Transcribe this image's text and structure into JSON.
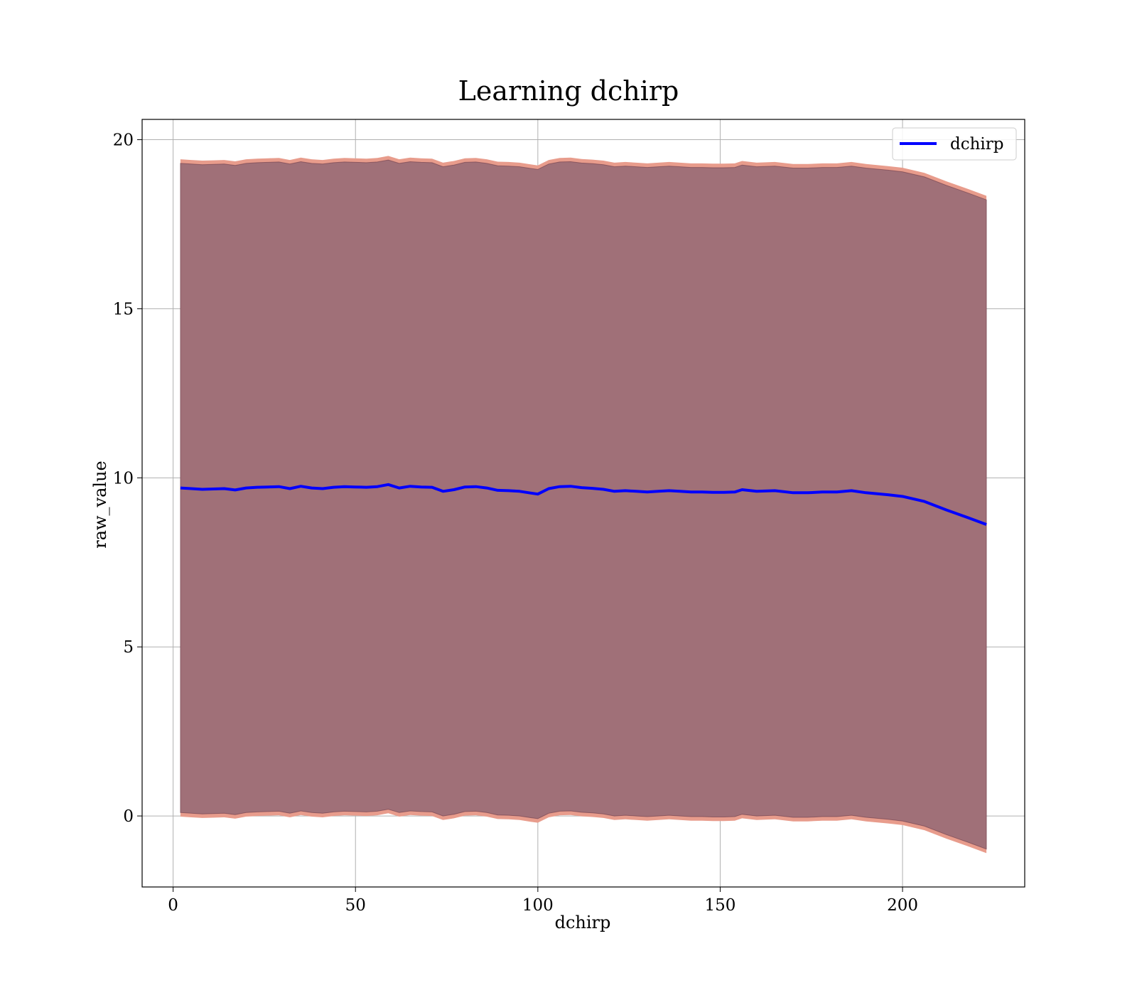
{
  "chart_data": {
    "type": "line",
    "title": "Learning dchirp",
    "xlabel": "dchirp",
    "ylabel": "raw_value",
    "xlim": [
      -8.5,
      233.5
    ],
    "ylim": [
      -2.1,
      20.6
    ],
    "xticks": [
      0,
      50,
      100,
      150,
      200
    ],
    "yticks": [
      0,
      5,
      10,
      15,
      20
    ],
    "grid": true,
    "legend": {
      "placement": "top-right",
      "entries": [
        "dchirp"
      ]
    },
    "colors": {
      "line": "#0000ff",
      "band_inner": "#a07078",
      "band_outer": "#e89c8c",
      "band_edge": "#6a3a4a",
      "grid": "#b0b0b0"
    },
    "series": [
      {
        "name": "dchirp",
        "x": [
          2,
          5,
          8,
          11,
          14,
          17,
          20,
          23,
          26,
          29,
          32,
          35,
          38,
          41,
          44,
          47,
          50,
          53,
          56,
          59,
          62,
          65,
          68,
          71,
          74,
          77,
          80,
          83,
          86,
          89,
          92,
          95,
          98,
          100,
          103,
          106,
          109,
          112,
          115,
          118,
          121,
          124,
          127,
          130,
          133,
          136,
          139,
          142,
          145,
          148,
          151,
          154,
          156,
          160,
          165,
          170,
          174,
          178,
          182,
          186,
          190,
          196,
          200,
          206,
          212,
          218,
          223
        ],
        "values": [
          9.7,
          9.68,
          9.66,
          9.67,
          9.68,
          9.64,
          9.7,
          9.72,
          9.73,
          9.74,
          9.68,
          9.75,
          9.7,
          9.68,
          9.72,
          9.74,
          9.73,
          9.72,
          9.74,
          9.8,
          9.7,
          9.75,
          9.73,
          9.72,
          9.6,
          9.65,
          9.73,
          9.74,
          9.7,
          9.63,
          9.62,
          9.6,
          9.55,
          9.52,
          9.68,
          9.74,
          9.75,
          9.71,
          9.69,
          9.66,
          9.6,
          9.62,
          9.6,
          9.58,
          9.6,
          9.62,
          9.6,
          9.58,
          9.58,
          9.57,
          9.57,
          9.58,
          9.65,
          9.6,
          9.62,
          9.56,
          9.56,
          9.58,
          9.58,
          9.62,
          9.56,
          9.5,
          9.45,
          9.3,
          9.05,
          8.82,
          8.62
        ]
      }
    ],
    "band": {
      "offset_outer": 9.72,
      "offset_inner": 9.6
    }
  }
}
